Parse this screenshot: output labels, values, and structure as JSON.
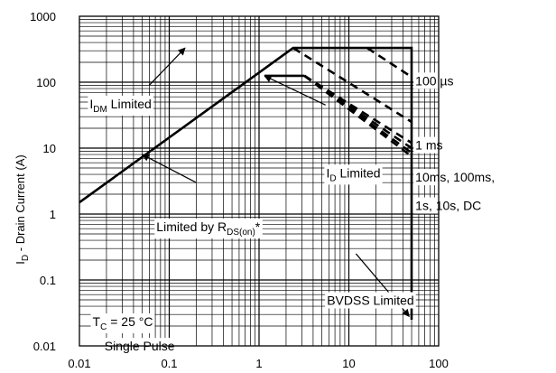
{
  "chart_data": {
    "type": "line",
    "x_scale": "log",
    "y_scale": "log",
    "xlim": [
      0.01,
      100
    ],
    "ylim": [
      0.01,
      1000
    ],
    "grid": true,
    "x_ticks": [
      "0.01",
      "0.1",
      "1",
      "10",
      "100"
    ],
    "y_ticks": [
      "1000",
      "100",
      "10",
      "1",
      "0.1",
      "0.01"
    ],
    "ylabel": {
      "main": "I",
      "sub": "D",
      "rest": " - Drain Current (A)"
    },
    "series": [
      {
        "role": "limit",
        "style": "solid",
        "points": [
          [
            0.01,
            1.5
          ],
          [
            2.4,
            330
          ],
          [
            50,
            330
          ],
          [
            50,
            0.025
          ]
        ]
      },
      {
        "role": "limit",
        "style": "solid",
        "points": [
          [
            1.15,
            125
          ],
          [
            3.2,
            125
          ]
        ]
      },
      {
        "role": "soa",
        "style": "dashed",
        "points": [
          [
            16,
            330
          ],
          [
            50,
            120
          ]
        ]
      },
      {
        "role": "soa",
        "style": "dashed",
        "points": [
          [
            2.4,
            330
          ],
          [
            50,
            25
          ]
        ]
      },
      {
        "role": "soa",
        "style": "dashed",
        "points": [
          [
            3.2,
            125
          ],
          [
            50,
            12
          ]
        ]
      },
      {
        "role": "soa",
        "style": "dashed",
        "points": [
          [
            3.2,
            125
          ],
          [
            50,
            10
          ]
        ]
      },
      {
        "role": "soa",
        "style": "dashed",
        "points": [
          [
            3.2,
            125
          ],
          [
            50,
            8.5
          ]
        ]
      },
      {
        "role": "soa",
        "style": "dashed",
        "points": [
          [
            3.2,
            125
          ],
          [
            50,
            7.5
          ]
        ]
      }
    ],
    "annotations": [
      {
        "parts": [
          {
            "t": "I"
          },
          {
            "t": "DM",
            "sub": true
          },
          {
            "t": " Limited"
          }
        ],
        "at": [
          0.013,
          40
        ],
        "arrow": [
          [
            0.06,
            90
          ],
          [
            0.15,
            330
          ]
        ]
      },
      {
        "parts": [
          {
            "t": "I"
          },
          {
            "t": "D",
            "sub": true
          },
          {
            "t": " Limited"
          }
        ],
        "at": [
          5.6,
          3.6
        ],
        "arrow": [
          [
            5.5,
            45
          ],
          [
            1.15,
            125
          ]
        ]
      },
      {
        "parts": [
          {
            "t": "Limited by R"
          },
          {
            "t": "DS(on)",
            "sub": true
          },
          {
            "t": "*"
          }
        ],
        "at": [
          0.072,
          0.55
        ],
        "arrow": [
          [
            0.2,
            3
          ],
          [
            0.05,
            8
          ]
        ]
      },
      {
        "parts": [
          {
            "t": "100 µs"
          }
        ],
        "at": [
          55,
          90
        ],
        "arrow": null
      },
      {
        "parts": [
          {
            "t": "1 ms"
          }
        ],
        "at": [
          55,
          9.5
        ],
        "arrow": null
      },
      {
        "parts": [
          {
            "t": "10ms, 100ms,"
          }
        ],
        "at": [
          55,
          3.1
        ],
        "arrow": null
      },
      {
        "parts": [
          {
            "t": "1s, 10s, DC"
          }
        ],
        "at": [
          55,
          1.15
        ],
        "arrow": null
      },
      {
        "parts": [
          {
            "t": "BVDSS Limited"
          }
        ],
        "at": [
          5.7,
          0.042
        ],
        "arrow": [
          [
            12,
            0.25
          ],
          [
            47,
            0.028
          ]
        ]
      },
      {
        "parts": [
          {
            "t": "T"
          },
          {
            "t": "C",
            "sub": true
          },
          {
            "t": " = 25 °C"
          }
        ],
        "at": [
          0.014,
          0.02
        ],
        "arrow": null
      },
      {
        "parts": [
          {
            "t": "Single Pulse"
          }
        ],
        "at": [
          0.019,
          0.0085
        ],
        "arrow": null
      }
    ]
  }
}
